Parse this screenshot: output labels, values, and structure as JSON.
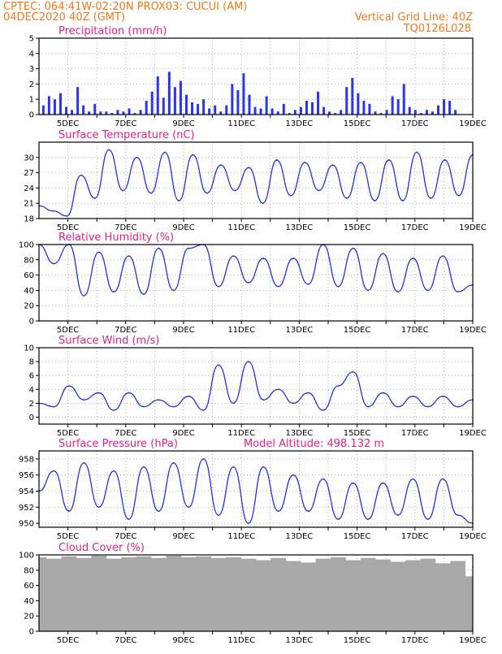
{
  "header": {
    "line1_left": "CPTEC:   064:41W-02:20N   PROX03: CUCUI (AM)",
    "line2_left": "04DEC2020 40Z (GMT)",
    "line1_right": "Vertical Grid Line: 40Z",
    "line2_right": "TQ0126L028"
  },
  "x_labels": [
    "5DEC",
    "7DEC",
    "9DEC",
    "11DEC",
    "13DEC",
    "15DEC",
    "17DEC",
    "19DEC"
  ],
  "colors": {
    "line": "#2233dd",
    "bar": "#2a36e8",
    "cloud": "#a8a8a8",
    "title": "#e0208c",
    "header": "#f07818"
  },
  "chart_data": [
    {
      "type": "bar",
      "title": "Precipitation (mm/h)",
      "ylim": [
        0,
        5
      ],
      "yticks": [
        0,
        1,
        2,
        3,
        4,
        5
      ],
      "x": [
        "04DEC",
        "04DEC",
        "04DEC",
        "04DEC",
        "04DEC",
        "05DEC",
        "05DEC",
        "05DEC",
        "05DEC",
        "05DEC",
        "05DEC",
        "06DEC",
        "06DEC",
        "06DEC",
        "07DEC",
        "07DEC",
        "07DEC",
        "08DEC",
        "08DEC",
        "08DEC",
        "08DEC",
        "08DEC",
        "08DEC",
        "08DEC",
        "08DEC",
        "08DEC",
        "08DEC",
        "09DEC",
        "09DEC",
        "09DEC",
        "09DEC",
        "10DEC",
        "10DEC",
        "10DEC",
        "10DEC",
        "10DEC",
        "10DEC",
        "10DEC",
        "11DEC",
        "11DEC",
        "11DEC",
        "11DEC",
        "11DEC",
        "12DEC",
        "12DEC",
        "12DEC",
        "13DEC",
        "13DEC",
        "13DEC",
        "13DEC",
        "13DEC",
        "13DEC",
        "13DEC",
        "14DEC",
        "14DEC",
        "14DEC",
        "14DEC",
        "14DEC",
        "14DEC",
        "14DEC",
        "14DEC",
        "15DEC",
        "15DEC",
        "15DEC",
        "15DEC",
        "16DEC",
        "16DEC",
        "17DEC",
        "17DEC",
        "18DEC",
        "18DEC",
        "18DEC",
        "18DEC"
      ],
      "values": [
        0.6,
        1.2,
        1.0,
        1.4,
        0.5,
        0.3,
        1.8,
        0.6,
        0.2,
        0.7,
        0.2,
        0.2,
        0.1,
        0.3,
        0.2,
        0.4,
        0.1,
        0.3,
        0.9,
        1.5,
        2.5,
        1.1,
        2.8,
        1.8,
        2.2,
        1.3,
        0.8,
        0.7,
        1.0,
        0.4,
        0.6,
        0.2,
        0.6,
        2.0,
        1.6,
        2.7,
        1.3,
        0.5,
        0.4,
        1.2,
        0.4,
        0.2,
        0.7,
        0.1,
        0.3,
        0.5,
        0.9,
        0.8,
        1.5,
        0.5,
        0.2,
        0.1,
        0.3,
        1.8,
        2.4,
        1.4,
        0.9,
        0.7,
        0.2,
        0.1,
        0.3,
        1.2,
        1.0,
        2.0,
        0.5,
        0.3,
        0.1,
        0.3,
        0.2,
        0.6,
        1.0,
        0.9,
        0.3
      ]
    },
    {
      "type": "line",
      "title": "Surface Temperature (nC)",
      "ylim": [
        18,
        33
      ],
      "yticks": [
        18,
        21,
        24,
        27,
        30
      ],
      "x": [
        "04DEC",
        "05DEC",
        "05DEC",
        "05DEC",
        "06DEC",
        "06DEC",
        "06DEC",
        "07DEC",
        "07DEC",
        "08DEC",
        "08DEC",
        "09DEC",
        "09DEC",
        "10DEC",
        "10DEC",
        "11DEC",
        "11DEC",
        "12DEC",
        "12DEC",
        "13DEC",
        "13DEC",
        "14DEC",
        "14DEC",
        "15DEC",
        "15DEC",
        "16DEC",
        "16DEC",
        "17DEC",
        "17DEC",
        "18DEC",
        "18DEC",
        "19DEC"
      ],
      "values": [
        20.5,
        19.5,
        18.5,
        26.5,
        22.0,
        31.5,
        23.5,
        30.0,
        23.0,
        31.0,
        21.5,
        30.5,
        23.0,
        28.5,
        23.5,
        28.0,
        21.0,
        29.5,
        22.5,
        29.0,
        23.5,
        28.5,
        22.0,
        29.0,
        21.5,
        29.5,
        21.5,
        31.0,
        22.0,
        29.5,
        22.5,
        30.5
      ]
    },
    {
      "type": "line",
      "title": "Relative Humidity (%)",
      "ylim": [
        0,
        100
      ],
      "yticks": [
        0,
        20,
        40,
        60,
        80,
        100
      ],
      "x": [
        "04DEC",
        "05DEC",
        "05DEC",
        "06DEC",
        "06DEC",
        "07DEC",
        "07DEC",
        "08DEC",
        "08DEC",
        "09DEC",
        "09DEC",
        "10DEC",
        "10DEC",
        "11DEC",
        "11DEC",
        "12DEC",
        "12DEC",
        "13DEC",
        "13DEC",
        "14DEC",
        "14DEC",
        "15DEC",
        "15DEC",
        "16DEC",
        "16DEC",
        "17DEC",
        "17DEC",
        "18DEC",
        "18DEC",
        "19DEC"
      ],
      "values": [
        100,
        75,
        100,
        33,
        90,
        38,
        85,
        35,
        95,
        40,
        95,
        100,
        45,
        85,
        50,
        82,
        45,
        82,
        48,
        100,
        45,
        95,
        40,
        88,
        38,
        82,
        40,
        85,
        38,
        47
      ]
    },
    {
      "type": "line",
      "title": "Surface Wind (m/s)",
      "ylim": [
        -1,
        10
      ],
      "yticks": [
        0,
        2,
        4,
        6,
        8,
        10
      ],
      "x": [
        "04DEC",
        "05DEC",
        "05DEC",
        "06DEC",
        "06DEC",
        "07DEC",
        "07DEC",
        "08DEC",
        "08DEC",
        "09DEC",
        "09DEC",
        "10DEC",
        "10DEC",
        "11DEC",
        "11DEC",
        "12DEC",
        "12DEC",
        "13DEC",
        "13DEC",
        "14DEC",
        "14DEC",
        "15DEC",
        "15DEC",
        "16DEC",
        "16DEC",
        "17DEC",
        "17DEC",
        "18DEC",
        "18DEC",
        "19DEC"
      ],
      "values": [
        2.0,
        1.5,
        4.5,
        2.5,
        3.5,
        1.0,
        3.5,
        1.5,
        2.5,
        1.5,
        3.0,
        1.0,
        7.5,
        2.0,
        8.0,
        2.5,
        4.0,
        2.0,
        3.5,
        1.0,
        4.5,
        6.5,
        1.5,
        3.5,
        1.5,
        3.0,
        1.5,
        3.0,
        1.5,
        2.5
      ]
    },
    {
      "type": "line",
      "title": "Surface Pressure (hPa)",
      "annotation": "Model Altitude: 498.132 m",
      "ylim": [
        949.5,
        959
      ],
      "yticks": [
        950,
        952,
        954,
        956,
        958
      ],
      "x": [
        "04DEC",
        "05DEC",
        "05DEC",
        "06DEC",
        "06DEC",
        "07DEC",
        "07DEC",
        "08DEC",
        "08DEC",
        "09DEC",
        "09DEC",
        "10DEC",
        "10DEC",
        "11DEC",
        "11DEC",
        "12DEC",
        "12DEC",
        "13DEC",
        "13DEC",
        "14DEC",
        "14DEC",
        "15DEC",
        "15DEC",
        "16DEC",
        "16DEC",
        "17DEC",
        "17DEC",
        "18DEC",
        "18DEC",
        "19DEC"
      ],
      "values": [
        954.0,
        956.5,
        951.5,
        957.5,
        952.0,
        956.5,
        950.5,
        957.0,
        951.5,
        957.5,
        952.0,
        958.0,
        951.0,
        957.0,
        950.0,
        957.0,
        951.5,
        956.0,
        951.5,
        955.5,
        950.5,
        955.0,
        950.5,
        955.0,
        951.0,
        955.5,
        950.5,
        955.5,
        951.0,
        950.0
      ]
    },
    {
      "type": "area",
      "title": "Cloud Cover (%)",
      "ylim": [
        0,
        100
      ],
      "yticks": [
        0,
        20,
        40,
        60,
        80,
        100
      ],
      "x": [
        "04DEC",
        "05DEC",
        "05DEC",
        "06DEC",
        "06DEC",
        "07DEC",
        "07DEC",
        "08DEC",
        "08DEC",
        "09DEC",
        "09DEC",
        "10DEC",
        "10DEC",
        "11DEC",
        "11DEC",
        "12DEC",
        "12DEC",
        "13DEC",
        "13DEC",
        "14DEC",
        "14DEC",
        "15DEC",
        "15DEC",
        "16DEC",
        "16DEC",
        "17DEC",
        "17DEC",
        "18DEC",
        "18DEC",
        "19DEC"
      ],
      "values": [
        97,
        95,
        98,
        96,
        99,
        95,
        97,
        98,
        96,
        99,
        97,
        98,
        96,
        97,
        95,
        93,
        96,
        92,
        90,
        95,
        97,
        93,
        96,
        94,
        91,
        93,
        95,
        89,
        92,
        72
      ]
    }
  ]
}
